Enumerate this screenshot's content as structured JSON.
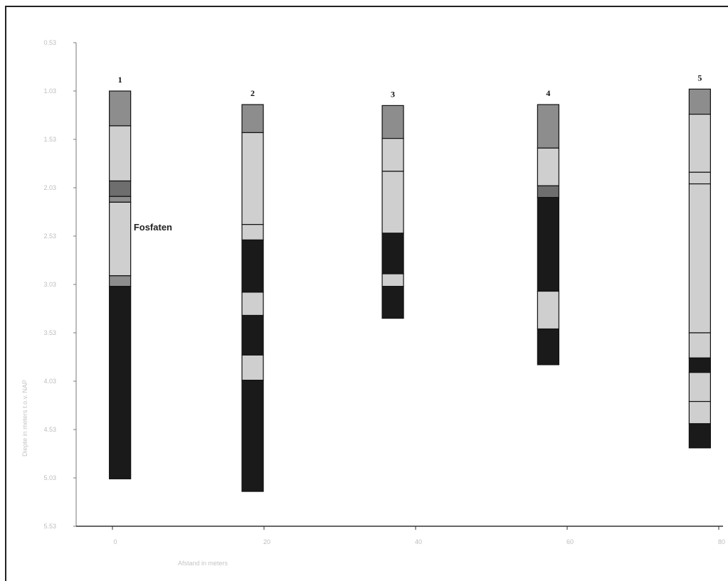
{
  "chart_data": {
    "type": "strip-log",
    "title": "",
    "xlabel": "Afstand in meters",
    "ylabel": "Diepte in meters t.o.v. NAP",
    "xlim": [
      0,
      80
    ],
    "ylim": [
      5.53,
      0.53
    ],
    "x_ticks": [
      0,
      20,
      40,
      60,
      80
    ],
    "x_tick_labels": [
      "0",
      "20",
      "40",
      "60",
      "80"
    ],
    "y_ticks": [
      0.53,
      1.03,
      1.53,
      2.03,
      2.53,
      3.03,
      3.53,
      4.03,
      4.53,
      5.03,
      5.53
    ],
    "y_tick_labels": [
      "0.53",
      "1.03",
      "1.53",
      "2.03",
      "2.53",
      "3.03",
      "3.53",
      "4.03",
      "4.53",
      "5.03",
      "5.53"
    ],
    "colors": {
      "dark": "#1a1a1a",
      "mid": "#8d8d8d",
      "midDark": "#6e6e6e",
      "light": "#cfcfcf"
    },
    "cores": [
      {
        "label": "1",
        "x": 1,
        "layers": [
          {
            "top": 1.03,
            "bottom": 1.39,
            "shade": "mid"
          },
          {
            "top": 1.39,
            "bottom": 1.96,
            "shade": "light"
          },
          {
            "top": 1.96,
            "bottom": 2.12,
            "shade": "midDark"
          },
          {
            "top": 2.12,
            "bottom": 2.18,
            "shade": "mid"
          },
          {
            "top": 2.18,
            "bottom": 2.94,
            "shade": "light"
          },
          {
            "top": 2.94,
            "bottom": 3.05,
            "shade": "mid"
          },
          {
            "top": 3.05,
            "bottom": 5.04,
            "shade": "dark"
          }
        ]
      },
      {
        "label": "2",
        "x": 18.5,
        "layers": [
          {
            "top": 1.17,
            "bottom": 1.46,
            "shade": "mid"
          },
          {
            "top": 1.46,
            "bottom": 2.41,
            "shade": "light"
          },
          {
            "top": 2.41,
            "bottom": 2.57,
            "shade": "light"
          },
          {
            "top": 2.57,
            "bottom": 3.11,
            "shade": "dark"
          },
          {
            "top": 3.11,
            "bottom": 3.35,
            "shade": "light"
          },
          {
            "top": 3.35,
            "bottom": 3.76,
            "shade": "dark"
          },
          {
            "top": 3.76,
            "bottom": 4.02,
            "shade": "light"
          },
          {
            "top": 4.02,
            "bottom": 5.17,
            "shade": "dark"
          }
        ]
      },
      {
        "label": "3",
        "x": 37,
        "layers": [
          {
            "top": 1.18,
            "bottom": 1.52,
            "shade": "mid"
          },
          {
            "top": 1.52,
            "bottom": 1.86,
            "shade": "light"
          },
          {
            "top": 1.86,
            "bottom": 2.5,
            "shade": "light"
          },
          {
            "top": 2.5,
            "bottom": 2.92,
            "shade": "dark"
          },
          {
            "top": 2.92,
            "bottom": 3.05,
            "shade": "light"
          },
          {
            "top": 3.05,
            "bottom": 3.38,
            "shade": "dark"
          }
        ]
      },
      {
        "label": "4",
        "x": 57.5,
        "layers": [
          {
            "top": 1.17,
            "bottom": 1.62,
            "shade": "mid"
          },
          {
            "top": 1.62,
            "bottom": 2.01,
            "shade": "light"
          },
          {
            "top": 2.01,
            "bottom": 2.13,
            "shade": "midDark"
          },
          {
            "top": 2.13,
            "bottom": 3.1,
            "shade": "dark"
          },
          {
            "top": 3.1,
            "bottom": 3.49,
            "shade": "light"
          },
          {
            "top": 3.49,
            "bottom": 3.86,
            "shade": "dark"
          }
        ]
      },
      {
        "label": "5",
        "x": 77.5,
        "layers": [
          {
            "top": 1.01,
            "bottom": 1.27,
            "shade": "mid"
          },
          {
            "top": 1.27,
            "bottom": 1.87,
            "shade": "light"
          },
          {
            "top": 1.87,
            "bottom": 1.99,
            "shade": "light"
          },
          {
            "top": 1.99,
            "bottom": 3.53,
            "shade": "light"
          },
          {
            "top": 3.53,
            "bottom": 3.79,
            "shade": "light"
          },
          {
            "top": 3.79,
            "bottom": 3.94,
            "shade": "dark"
          },
          {
            "top": 3.94,
            "bottom": 4.24,
            "shade": "light"
          },
          {
            "top": 4.24,
            "bottom": 4.47,
            "shade": "light"
          },
          {
            "top": 4.47,
            "bottom": 4.72,
            "shade": "dark"
          }
        ]
      }
    ],
    "annotations": [
      {
        "text": "Fosfaten",
        "x": 2.8,
        "y": 2.47
      }
    ]
  }
}
